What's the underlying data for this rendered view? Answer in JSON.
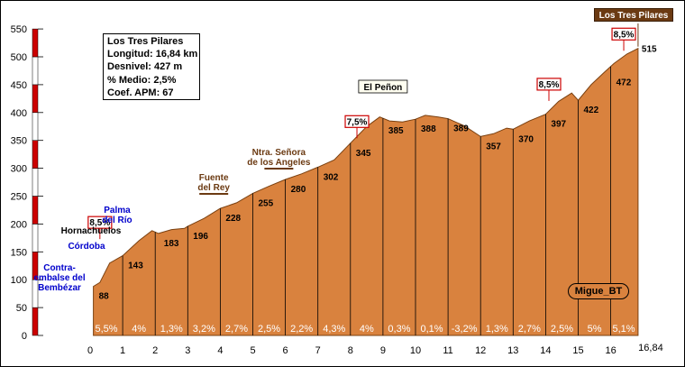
{
  "chart_data": {
    "type": "area",
    "title": "",
    "xlabel": "",
    "ylabel": "",
    "x_range": [
      0,
      16.84
    ],
    "y_range": [
      0,
      550
    ],
    "x_ticks": [
      "0",
      "1",
      "2",
      "3",
      "4",
      "5",
      "6",
      "7",
      "8",
      "9",
      "10",
      "11",
      "12",
      "13",
      "14",
      "15",
      "16",
      "16,84"
    ],
    "y_ticks": [
      "0",
      "50",
      "100",
      "150",
      "200",
      "250",
      "300",
      "350",
      "400",
      "450",
      "500",
      "550"
    ],
    "profile": [
      [
        0.1,
        88
      ],
      [
        0.3,
        95
      ],
      [
        0.6,
        130
      ],
      [
        1.0,
        143
      ],
      [
        1.5,
        170
      ],
      [
        1.9,
        188
      ],
      [
        2.1,
        183
      ],
      [
        2.5,
        190
      ],
      [
        2.9,
        192
      ],
      [
        3.0,
        196
      ],
      [
        3.5,
        210
      ],
      [
        4.0,
        228
      ],
      [
        4.5,
        238
      ],
      [
        5.0,
        255
      ],
      [
        5.5,
        268
      ],
      [
        6.0,
        280
      ],
      [
        6.5,
        290
      ],
      [
        7.0,
        302
      ],
      [
        7.5,
        315
      ],
      [
        8.0,
        345
      ],
      [
        8.5,
        375
      ],
      [
        8.9,
        392
      ],
      [
        9.2,
        385
      ],
      [
        9.6,
        383
      ],
      [
        10.0,
        388
      ],
      [
        10.3,
        395
      ],
      [
        10.7,
        392
      ],
      [
        11.0,
        389
      ],
      [
        11.5,
        376
      ],
      [
        12.0,
        357
      ],
      [
        12.4,
        362
      ],
      [
        12.8,
        372
      ],
      [
        13.0,
        370
      ],
      [
        13.5,
        385
      ],
      [
        14.0,
        397
      ],
      [
        14.4,
        420
      ],
      [
        14.8,
        435
      ],
      [
        15.0,
        422
      ],
      [
        15.4,
        450
      ],
      [
        15.8,
        472
      ],
      [
        16.1,
        488
      ],
      [
        16.5,
        505
      ],
      [
        16.84,
        515
      ]
    ],
    "point_labels": [
      {
        "x": 0.1,
        "y": 88,
        "label": "88"
      },
      {
        "x": 1.0,
        "y": 143,
        "label": "143"
      },
      {
        "x": 2.1,
        "y": 183,
        "label": "183"
      },
      {
        "x": 3.0,
        "y": 196,
        "label": "196"
      },
      {
        "x": 4.0,
        "y": 228,
        "label": "228"
      },
      {
        "x": 5.0,
        "y": 255,
        "label": "255"
      },
      {
        "x": 6.0,
        "y": 280,
        "label": "280"
      },
      {
        "x": 7.0,
        "y": 302,
        "label": "302"
      },
      {
        "x": 8.0,
        "y": 345,
        "label": "345"
      },
      {
        "x": 9.0,
        "y": 385,
        "label": "385"
      },
      {
        "x": 10.0,
        "y": 388,
        "label": "388"
      },
      {
        "x": 11.0,
        "y": 389,
        "label": "389"
      },
      {
        "x": 12.0,
        "y": 357,
        "label": "357"
      },
      {
        "x": 13.0,
        "y": 370,
        "label": "370"
      },
      {
        "x": 14.0,
        "y": 397,
        "label": "397"
      },
      {
        "x": 15.0,
        "y": 422,
        "label": "422"
      },
      {
        "x": 16.0,
        "y": 472,
        "label": "472"
      },
      {
        "x": 16.84,
        "y": 515,
        "label": "515"
      }
    ],
    "segment_grades": [
      {
        "x": 0.5,
        "label": "5,5%"
      },
      {
        "x": 1.5,
        "label": "4%"
      },
      {
        "x": 2.5,
        "label": "1,3%"
      },
      {
        "x": 3.5,
        "label": "3,2%"
      },
      {
        "x": 4.5,
        "label": "2,7%"
      },
      {
        "x": 5.5,
        "label": "2,5%"
      },
      {
        "x": 6.5,
        "label": "2,2%"
      },
      {
        "x": 7.5,
        "label": "4,3%"
      },
      {
        "x": 8.5,
        "label": "4%"
      },
      {
        "x": 9.5,
        "label": "0,3%"
      },
      {
        "x": 10.5,
        "label": "0,1%"
      },
      {
        "x": 11.5,
        "label": "-3,2%"
      },
      {
        "x": 12.5,
        "label": "1,3%"
      },
      {
        "x": 13.5,
        "label": "2,7%"
      },
      {
        "x": 14.5,
        "label": "2,5%"
      },
      {
        "x": 15.5,
        "label": "5%"
      },
      {
        "x": 16.4,
        "label": "5,1%"
      }
    ],
    "max_grades": [
      {
        "x": 0.3,
        "y": 202,
        "label": "8,5%"
      },
      {
        "x": 8.2,
        "y": 383,
        "label": "7,5%"
      },
      {
        "x": 14.1,
        "y": 450,
        "label": "8,5%"
      },
      {
        "x": 16.4,
        "y": 540,
        "label": "8,5%"
      }
    ],
    "places": [
      {
        "label": "Contra-\nembalse del\nBembézar",
        "x": 0.2,
        "y": 90,
        "color": "#0000cc"
      },
      {
        "label": "Córdoba",
        "x": 0.6,
        "y": 150,
        "color": "#0000cc"
      },
      {
        "label": "Hornachuelos",
        "x": 0.5,
        "y": 183,
        "color": "#000000"
      },
      {
        "label": "Palma\ndel Río",
        "x": 1.2,
        "y": 202,
        "color": "#0000cc"
      },
      {
        "label": "Fuente\ndel Rey",
        "x": 3.8,
        "y": 240,
        "color": "#6b3a12"
      },
      {
        "label": "Ntra. Señora\nde los Angeles",
        "x": 5.8,
        "y": 300,
        "color": "#6b3a12"
      },
      {
        "label": "El Peñon",
        "x": 9.0,
        "y": 392,
        "color": "#000000"
      },
      {
        "label": "Los Tres Pilares",
        "x": 16.84,
        "y": 515,
        "color": "#ffffff"
      }
    ]
  },
  "info": {
    "name": "Los Tres Pilares",
    "length": "Longitud: 16,84 km",
    "gain": "Desnivel: 427 m",
    "avg": "% Medio: 2,5%",
    "coef": "Coef. APM: 67"
  },
  "author": "Migue_BT",
  "colors": {
    "fill": "#d9823e",
    "stroke": "#7a4010",
    "axis_red": "#cc0000",
    "grade_box": "#cc0000"
  }
}
